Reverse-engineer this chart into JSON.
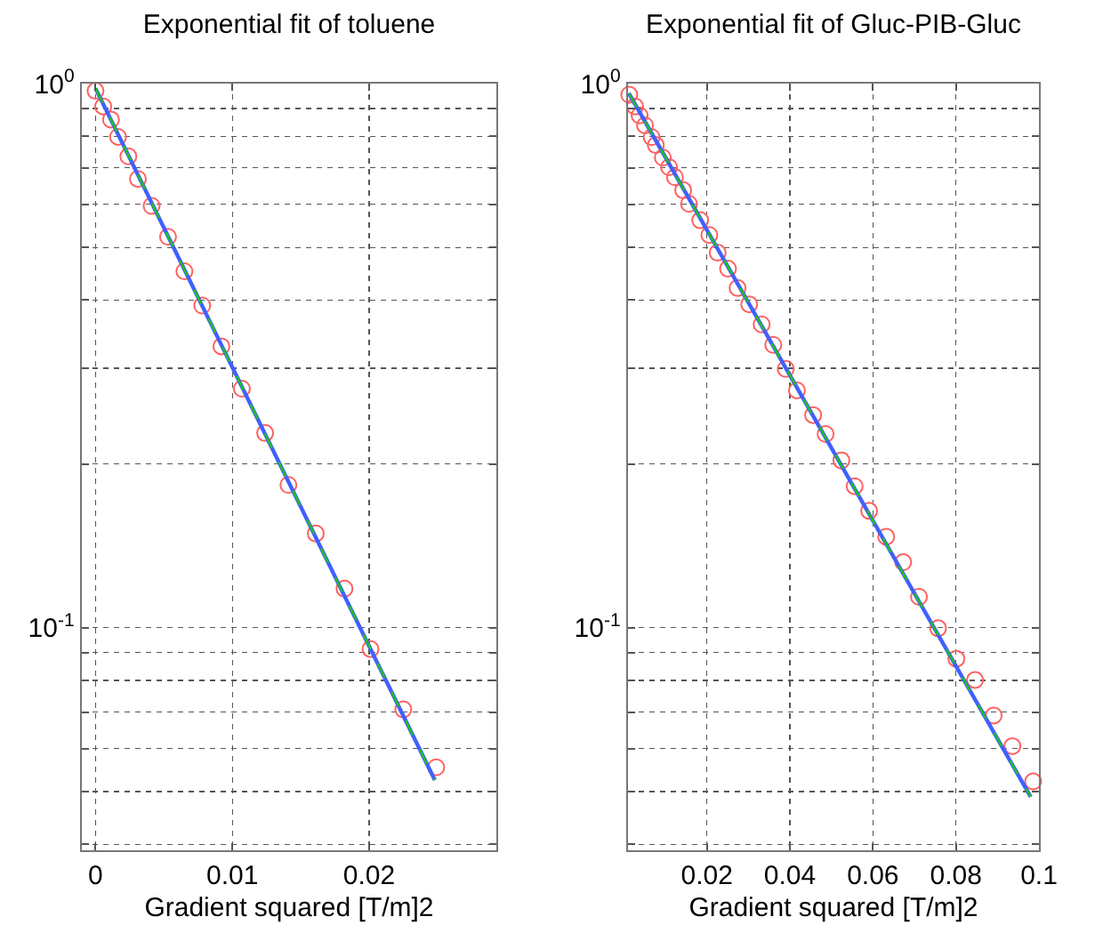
{
  "chart_data": [
    {
      "type": "scatter",
      "title": "Exponential fit of toluene",
      "xlabel": "Gradient squared [T/m]2",
      "log": "y",
      "grid": true,
      "xlim": [
        -0.001,
        0.0293
      ],
      "ylim": [
        0.039,
        1
      ],
      "xticks": [
        0,
        0.01,
        0.02
      ],
      "yticks": [
        {
          "value": 0.04,
          "label": null
        },
        {
          "value": 0.05,
          "label": null
        },
        {
          "value": 0.06,
          "label": null
        },
        {
          "value": 0.07,
          "label": null
        },
        {
          "value": 0.08,
          "label": null
        },
        {
          "value": 0.09,
          "label": null
        },
        {
          "value": 0.1,
          "label": "10$^{-1}$"
        },
        {
          "value": 0.2,
          "label": null
        },
        {
          "value": 0.3,
          "label": null
        },
        {
          "value": 0.4,
          "label": null
        },
        {
          "value": 0.5,
          "label": null
        },
        {
          "value": 0.6,
          "label": null
        },
        {
          "value": 0.7,
          "label": null
        },
        {
          "value": 0.8,
          "label": null
        },
        {
          "value": 0.9,
          "label": null
        },
        {
          "value": 1,
          "label": "10$^{0}$"
        }
      ],
      "series": [
        {
          "type": "scatter",
          "marker": "circle",
          "color": "#ff6060",
          "x": [
            0,
            0.00056,
            0.00113,
            0.00165,
            0.0024,
            0.0031,
            0.0041,
            0.0053,
            0.0065,
            0.0078,
            0.0092,
            0.0107,
            0.0124,
            0.0141,
            0.0161,
            0.0182,
            0.0201,
            0.0225,
            0.0249
          ],
          "values": [
            0.97,
            0.908,
            0.859,
            0.798,
            0.735,
            0.668,
            0.596,
            0.523,
            0.452,
            0.391,
            0.329,
            0.275,
            0.228,
            0.183,
            0.149,
            0.118,
            0.0914,
            0.0708,
            0.0554
          ]
        },
        {
          "type": "line",
          "marker": "none",
          "line_style": "solid",
          "color": "#4060ff",
          "x": [
            0,
            0.0248
          ],
          "values": [
            0.98,
            0.0525
          ]
        },
        {
          "type": "line",
          "marker": "none",
          "line_style": "dashed",
          "color": "#20c020",
          "x": [
            0,
            0.0248
          ],
          "values": [
            0.98,
            0.0525
          ]
        }
      ]
    },
    {
      "type": "scatter",
      "title": "Exponential fit of Gluc-PIB-Gluc",
      "xlabel": "Gradient squared [T/m]2",
      "log": "y",
      "grid": true,
      "xlim": [
        0.001,
        0.1
      ],
      "ylim": [
        0.039,
        1
      ],
      "xticks": [
        0.02,
        0.04,
        0.06,
        0.08,
        0.1
      ],
      "yticks": [
        {
          "value": 0.04,
          "label": null
        },
        {
          "value": 0.05,
          "label": null
        },
        {
          "value": 0.06,
          "label": null
        },
        {
          "value": 0.07,
          "label": null
        },
        {
          "value": 0.08,
          "label": null
        },
        {
          "value": 0.09,
          "label": null
        },
        {
          "value": 0.1,
          "label": "10$^{-1}$"
        },
        {
          "value": 0.2,
          "label": null
        },
        {
          "value": 0.3,
          "label": null
        },
        {
          "value": 0.4,
          "label": null
        },
        {
          "value": 0.5,
          "label": null
        },
        {
          "value": 0.6,
          "label": null
        },
        {
          "value": 0.7,
          "label": null
        },
        {
          "value": 0.8,
          "label": null
        },
        {
          "value": 0.9,
          "label": null
        },
        {
          "value": 1,
          "label": "10$^{0}$"
        }
      ],
      "series": [
        {
          "type": "scatter",
          "marker": "circle",
          "color": "#ff6060",
          "x": [
            0.0013,
            0.0027,
            0.0038,
            0.0051,
            0.0067,
            0.0077,
            0.0094,
            0.0109,
            0.0123,
            0.0143,
            0.0157,
            0.0184,
            0.0206,
            0.0226,
            0.0251,
            0.0274,
            0.0302,
            0.0332,
            0.036,
            0.039,
            0.0417,
            0.0456,
            0.0486,
            0.0524,
            0.0556,
            0.0591,
            0.0632,
            0.0673,
            0.0711,
            0.0757,
            0.0801,
            0.0846,
            0.0891,
            0.0936,
            0.0986
          ],
          "values": [
            0.954,
            0.908,
            0.874,
            0.838,
            0.797,
            0.771,
            0.731,
            0.702,
            0.673,
            0.637,
            0.601,
            0.561,
            0.527,
            0.489,
            0.457,
            0.421,
            0.393,
            0.361,
            0.331,
            0.299,
            0.273,
            0.246,
            0.227,
            0.203,
            0.182,
            0.164,
            0.147,
            0.132,
            0.114,
            0.0998,
            0.0877,
            0.0802,
            0.069,
            0.0606,
            0.0522
          ]
        },
        {
          "type": "line",
          "marker": "none",
          "line_style": "solid",
          "color": "#4060ff",
          "x": [
            0.0012,
            0.098
          ],
          "values": [
            0.96,
            0.0489
          ]
        },
        {
          "type": "line",
          "marker": "none",
          "line_style": "dashed",
          "color": "#20c020",
          "x": [
            0.0012,
            0.098
          ],
          "values": [
            0.96,
            0.0489
          ]
        }
      ]
    }
  ]
}
